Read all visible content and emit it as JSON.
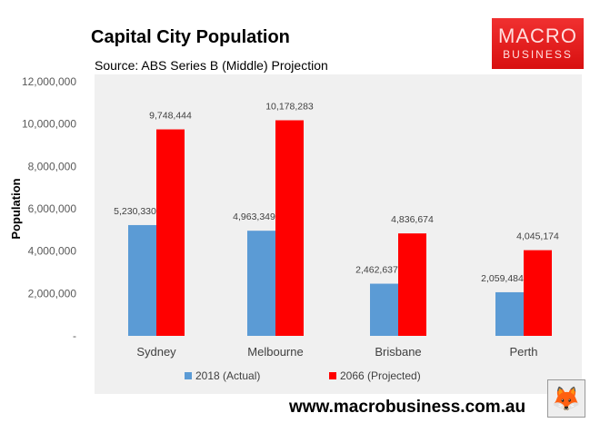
{
  "chart_data": {
    "type": "bar",
    "title": "Capital City Population",
    "subtitle": "Source: ABS Series B (Middle) Projection",
    "categories": [
      "Sydney",
      "Melbourne",
      "Brisbane",
      "Perth"
    ],
    "series": [
      {
        "name": "2018 (Actual)",
        "color": "#5b9bd5",
        "values": [
          5230330,
          4963349,
          2462637,
          2059484
        ],
        "labels": [
          "5,230,330",
          "4,963,349",
          "2,462,637",
          "2,059,484"
        ]
      },
      {
        "name": "2066 (Projected)",
        "color": "#ff0000",
        "values": [
          9748444,
          10178283,
          4836674,
          4045174
        ],
        "labels": [
          "9,748,444",
          "10,178,283",
          "4,836,674",
          "4,045,174"
        ]
      }
    ],
    "xlabel": "",
    "ylabel": "Population",
    "ylim": [
      0,
      12000000
    ],
    "yticks": [
      "-",
      "2,000,000",
      "4,000,000",
      "6,000,000",
      "8,000,000",
      "10,000,000",
      "12,000,000"
    ],
    "grid": false,
    "legend": "bottom"
  },
  "logo": {
    "line1": "MACRO",
    "line2": "BUSINESS"
  },
  "website": "www.macrobusiness.com.au"
}
